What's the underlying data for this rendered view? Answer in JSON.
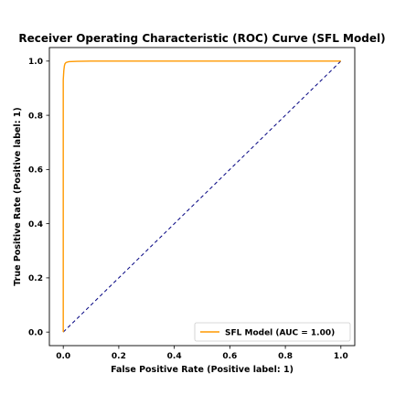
{
  "chart_data": {
    "type": "line",
    "title": "Receiver Operating Characteristic (ROC) Curve (SFL Model)",
    "xlabel": "False Positive Rate (Positive label: 1)",
    "ylabel": "True Positive Rate (Positive label: 1)",
    "xlim": [
      -0.05,
      1.05
    ],
    "ylim": [
      -0.05,
      1.05
    ],
    "xticks": [
      0.0,
      0.2,
      0.4,
      0.6,
      0.8,
      1.0
    ],
    "yticks": [
      0.0,
      0.2,
      0.4,
      0.6,
      0.8,
      1.0
    ],
    "xtick_labels": [
      "0.0",
      "0.2",
      "0.4",
      "0.6",
      "0.8",
      "1.0"
    ],
    "ytick_labels": [
      "0.0",
      "0.2",
      "0.4",
      "0.6",
      "0.8",
      "1.0"
    ],
    "grid": false,
    "legend_position": "lower-right",
    "series": [
      {
        "name": "SFL Model (AUC = 1.00)",
        "color": "#ff9900",
        "style": "solid",
        "x": [
          0.0,
          0.0,
          0.002,
          0.004,
          0.006,
          0.01,
          0.02,
          0.05,
          0.1,
          0.3,
          0.6,
          1.0
        ],
        "y": [
          0.0,
          0.93,
          0.965,
          0.982,
          0.99,
          0.995,
          0.998,
          0.999,
          1.0,
          1.0,
          1.0,
          1.0
        ]
      },
      {
        "name": "",
        "color": "#000080",
        "style": "dashed",
        "x": [
          0.0,
          1.0
        ],
        "y": [
          0.0,
          1.0
        ]
      }
    ]
  }
}
